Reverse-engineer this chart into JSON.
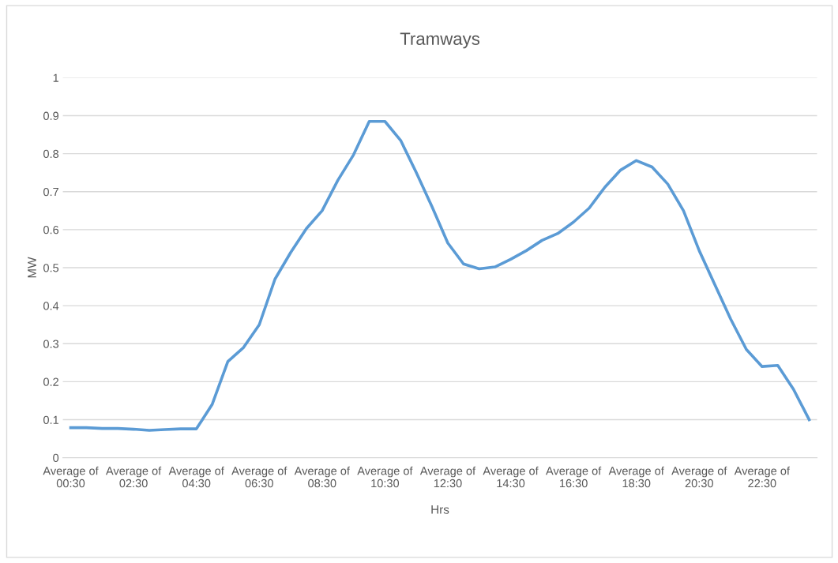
{
  "chart_data": {
    "type": "line",
    "title": "Tramways",
    "xlabel": "Hrs",
    "ylabel": "MW",
    "categories": [
      "Average of 00:30",
      null,
      null,
      null,
      "Average of 02:30",
      null,
      null,
      null,
      "Average of 04:30",
      null,
      null,
      null,
      "Average of 06:30",
      null,
      null,
      null,
      "Average of 08:30",
      null,
      null,
      null,
      "Average of 10:30",
      null,
      null,
      null,
      "Average of 12:30",
      null,
      null,
      null,
      "Average of 14:30",
      null,
      null,
      null,
      "Average of 16:30",
      null,
      null,
      null,
      "Average of 18:30",
      null,
      null,
      null,
      "Average of 20:30",
      null,
      null,
      null,
      "Average of 22:30",
      null,
      null,
      null
    ],
    "series": [
      {
        "color": "#5b9bd5",
        "values": [
          0.079,
          0.079,
          0.077,
          0.077,
          0.075,
          0.072,
          0.074,
          0.076,
          0.076,
          0.14,
          0.253,
          0.29,
          0.35,
          0.47,
          0.54,
          0.603,
          0.65,
          0.73,
          0.797,
          0.885,
          0.885,
          0.835,
          0.75,
          0.66,
          0.565,
          0.51,
          0.497,
          0.502,
          0.522,
          0.545,
          0.572,
          0.59,
          0.62,
          0.657,
          0.712,
          0.757,
          0.782,
          0.765,
          0.72,
          0.65,
          0.545,
          0.455,
          0.365,
          0.285,
          0.24,
          0.243,
          0.18,
          0.1
        ]
      }
    ],
    "ylim": [
      0,
      1
    ],
    "yticks": [
      0,
      0.1,
      0.2,
      0.3,
      0.4,
      0.5,
      0.6,
      0.7,
      0.8,
      0.9,
      1
    ],
    "grid": "y",
    "legend": false,
    "marker": "none",
    "line_style": "solid"
  }
}
